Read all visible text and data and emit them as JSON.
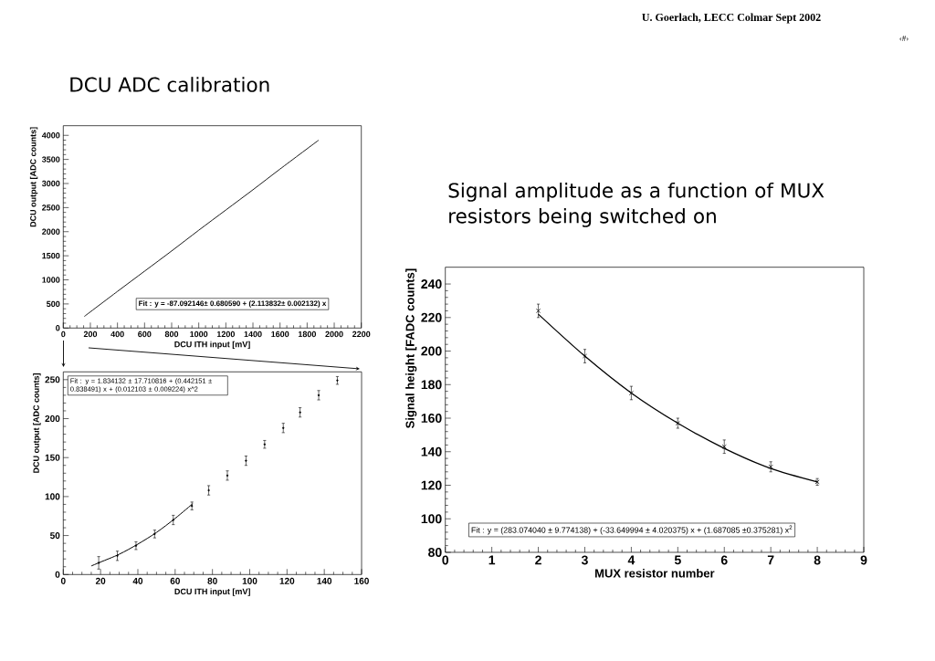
{
  "chart_data": [
    {
      "type": "line",
      "title": "DCU ADC calibration",
      "xlabel": "DCU ITH input [mV]",
      "ylabel": "DCU output [ADC counts]",
      "xlim": [
        0,
        2200
      ],
      "ylim": [
        0,
        4200
      ],
      "xticks": [
        0,
        200,
        400,
        600,
        800,
        1000,
        1200,
        1400,
        1600,
        1800,
        2000,
        2200
      ],
      "yticks": [
        0,
        500,
        1000,
        1500,
        2000,
        2500,
        3000,
        3500,
        4000
      ],
      "x": [
        155,
        400,
        600,
        800,
        1000,
        1200,
        1400,
        1600,
        1885
      ],
      "values": [
        240,
        760,
        1180,
        1600,
        2030,
        2450,
        2870,
        3300,
        3900
      ],
      "color": "#000000",
      "line_style": "solid",
      "annotations": [
        "Fit : y = -87.092146± 0.680590 + (2.113832± 0.002132) x",
        "U. Goerlach, LECC Colmar Sept 2002",
        "‹#›"
      ]
    },
    {
      "type": "scatter",
      "xlabel": "DCU ITH input [mV]",
      "ylabel": "DCU output [ADC counts]",
      "xlim": [
        0,
        160
      ],
      "ylim": [
        0,
        260
      ],
      "xticks": [
        0,
        20,
        40,
        60,
        80,
        100,
        120,
        140,
        160
      ],
      "yticks": [
        0,
        50,
        100,
        150,
        200,
        250
      ],
      "series": [
        {
          "type": "scatter",
          "marker": "circle",
          "color": "#000000",
          "x": [
            19,
            29,
            39,
            49,
            59,
            69,
            78,
            88,
            98,
            108,
            118,
            127,
            137,
            147
          ],
          "values": [
            15,
            24,
            37,
            52,
            70,
            88,
            108,
            127,
            146,
            167,
            188,
            208,
            230,
            249
          ],
          "errors": [
            8,
            6,
            5,
            5,
            6,
            5,
            6,
            6,
            6,
            5,
            6,
            6,
            6,
            5
          ]
        },
        {
          "type": "line",
          "marker": "none",
          "color": "#000000",
          "x": [
            15,
            20,
            30,
            40,
            50,
            60,
            69.5
          ],
          "values": [
            11,
            16,
            26,
            39,
            54,
            72,
            91
          ]
        }
      ],
      "line_style": "solid",
      "annotations": [
        "Fit : y = 1.834132 ± 17.710816 + (0.442151 ± 0.838491) x + (0.012103 ± 0.009224) x^2"
      ]
    },
    {
      "type": "scatter",
      "title": "Signal amplitude as a function of MUX resistors being switched on",
      "xlabel": "MUX resistor number",
      "ylabel": "Signal height [FADC counts]",
      "xlim": [
        0,
        9
      ],
      "ylim": [
        80,
        250
      ],
      "xticks": [
        0,
        1,
        2,
        3,
        4,
        5,
        6,
        7,
        8,
        9
      ],
      "yticks": [
        80,
        100,
        120,
        140,
        160,
        180,
        200,
        220,
        240
      ],
      "series": [
        {
          "type": "scatter",
          "marker": "cross",
          "color": "#000000",
          "x": [
            2,
            3,
            4,
            5,
            6,
            7,
            8
          ],
          "values": [
            224,
            197,
            175,
            157,
            143,
            131,
            122
          ],
          "errors": [
            4,
            4,
            4,
            3,
            4,
            3,
            2
          ]
        },
        {
          "type": "line",
          "marker": "none",
          "color": "#000000",
          "x": [
            2,
            3,
            4,
            5,
            6,
            7,
            8
          ],
          "values": [
            222,
            197,
            175,
            157,
            142,
            130,
            122
          ]
        }
      ],
      "line_style": "solid",
      "annotations": [
        "Fit : y = (283.074040 ± 9.774138) + (-33.649994 ± 4.020375) x + (1.687085 ±0.375281) x$^{2}$"
      ]
    }
  ]
}
